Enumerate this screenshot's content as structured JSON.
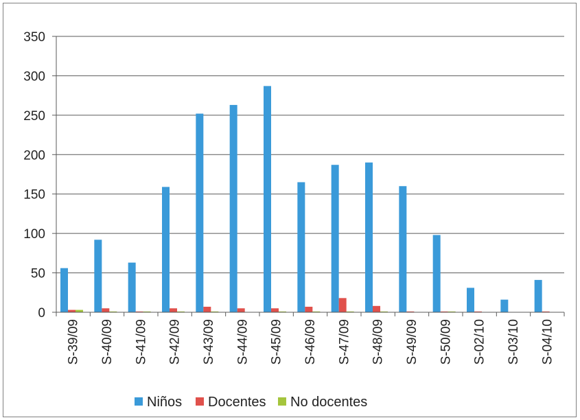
{
  "chart_data": {
    "type": "bar",
    "title": "",
    "xlabel": "",
    "ylabel": "",
    "ylim": [
      0,
      350
    ],
    "yticks": [
      "0",
      "50",
      "100",
      "150",
      "200",
      "250",
      "300",
      "350"
    ],
    "grid": true,
    "legend_position": "bottom",
    "categories": [
      "S-39/09",
      "S-40/09",
      "S-41/09",
      "S-42/09",
      "S-43/09",
      "S-44/09",
      "S-45/09",
      "S-46/09",
      "S-47/09",
      "S-48/09",
      "S-49/09",
      "S-50/09",
      "S-02/10",
      "S-03/10",
      "S-04/10"
    ],
    "series": [
      {
        "name": "Niños",
        "color": "#3a9ad9",
        "values": [
          56,
          92,
          63,
          159,
          252,
          263,
          287,
          165,
          187,
          190,
          160,
          98,
          31,
          16,
          41
        ]
      },
      {
        "name": "Docentes",
        "color": "#e0514c",
        "values": [
          3,
          5,
          1,
          5,
          7,
          5,
          5,
          7,
          18,
          8,
          1,
          1,
          1,
          0,
          1
        ]
      },
      {
        "name": "No docentes",
        "color": "#a5c53d",
        "values": [
          3,
          1,
          1,
          1,
          1,
          0,
          1,
          1,
          1,
          1,
          0,
          1,
          0,
          0,
          0
        ]
      }
    ]
  }
}
